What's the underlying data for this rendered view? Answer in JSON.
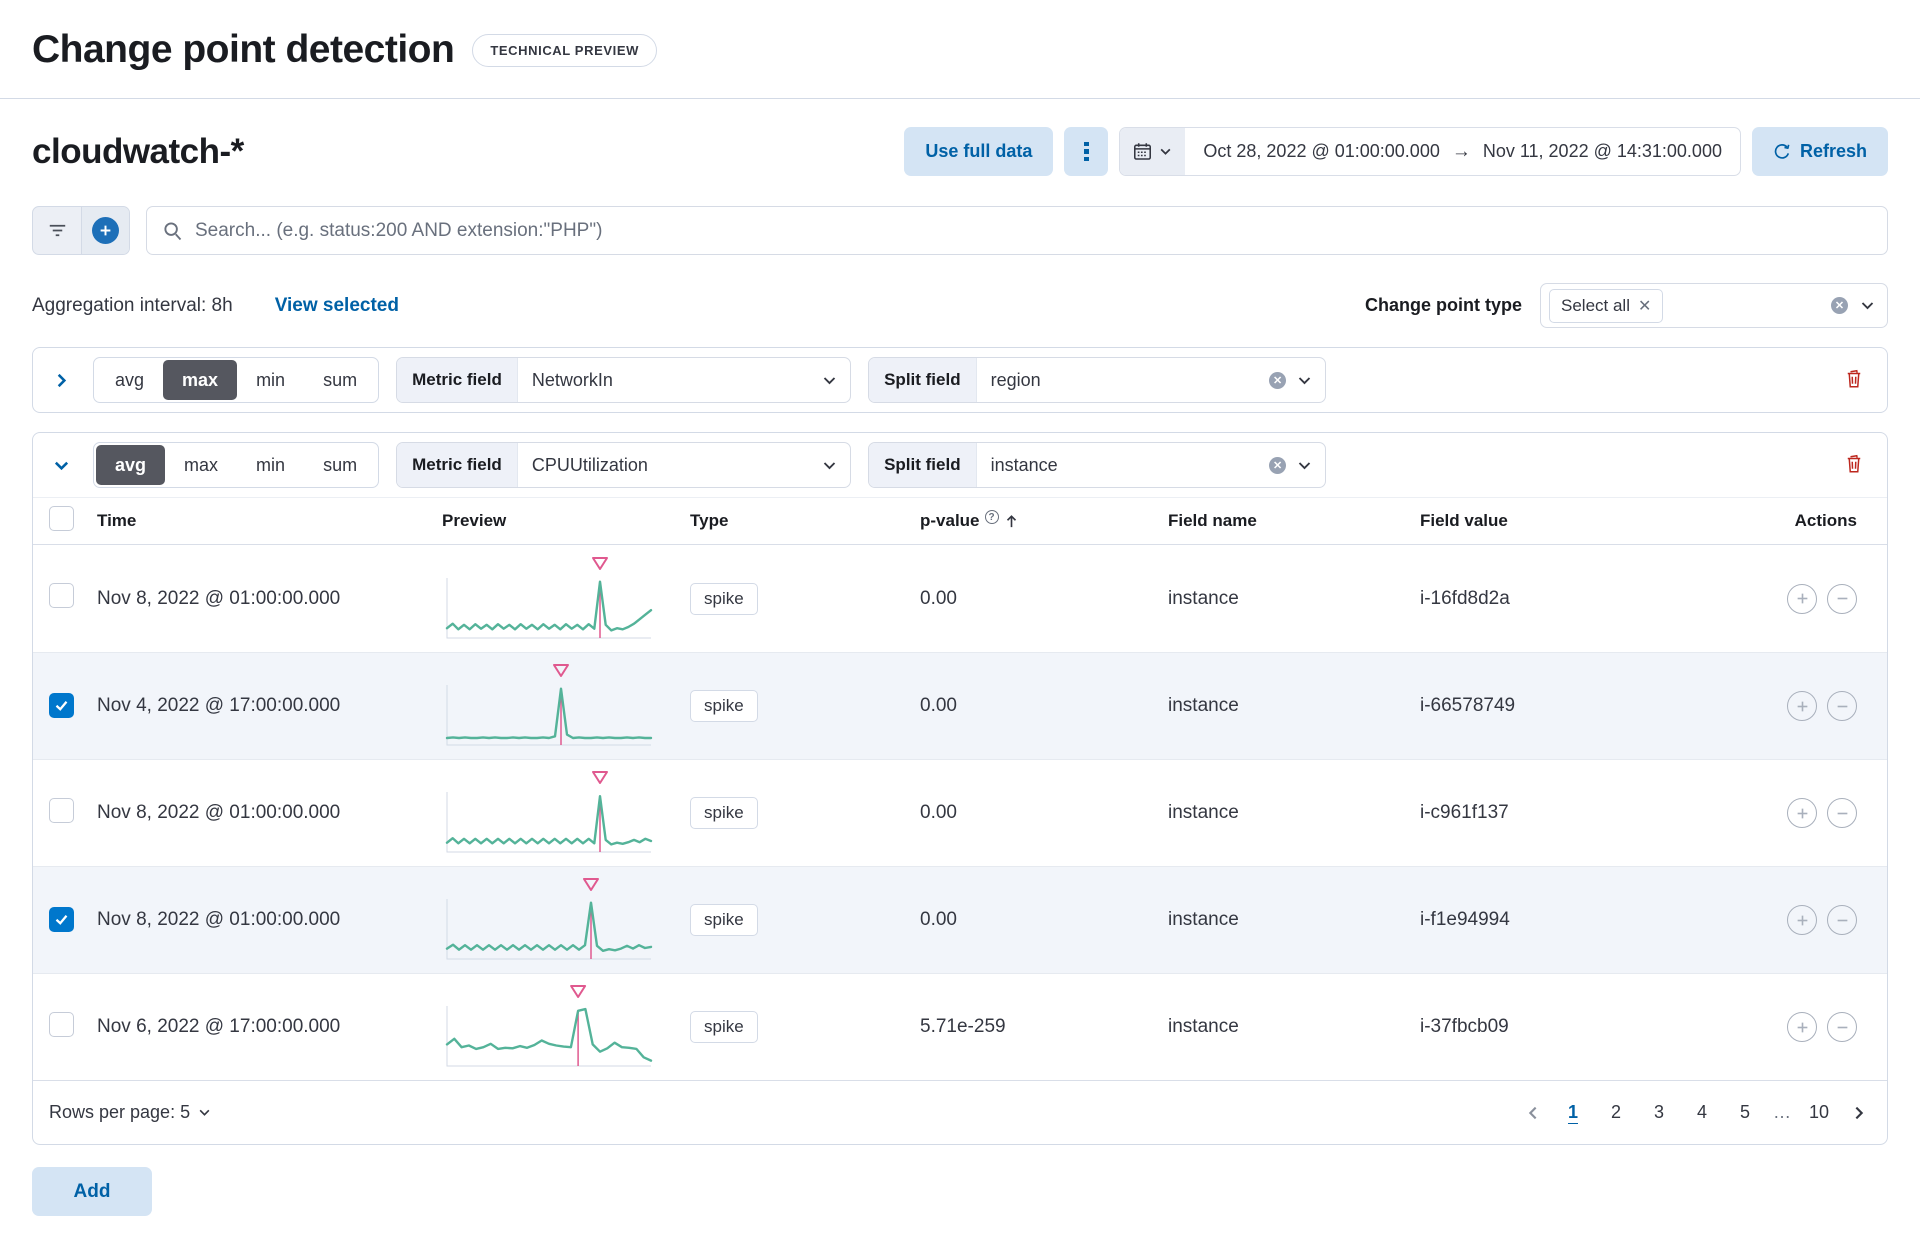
{
  "page": {
    "title": "Change point detection",
    "badge": "TECHNICAL PREVIEW"
  },
  "toolbar": {
    "index_title": "cloudwatch-*",
    "use_full_data": "Use full data",
    "date_start": "Oct 28, 2022 @ 01:00:00.000",
    "date_end": "Nov 11, 2022 @ 14:31:00.000",
    "refresh_label": "Refresh"
  },
  "search": {
    "placeholder": "Search... (e.g. status:200 AND extension:\"PHP\")"
  },
  "meta": {
    "aggregation_interval": "Aggregation interval: 8h",
    "view_selected": "View selected",
    "change_point_type_label": "Change point type",
    "change_point_type_value": "Select all"
  },
  "configs": [
    {
      "agg_options": [
        "avg",
        "max",
        "min",
        "sum"
      ],
      "selected_agg": "max",
      "metric_label": "Metric field",
      "metric_value": "NetworkIn",
      "split_label": "Split field",
      "split_value": "region",
      "collapsed": true
    },
    {
      "agg_options": [
        "avg",
        "max",
        "min",
        "sum"
      ],
      "selected_agg": "avg",
      "metric_label": "Metric field",
      "metric_value": "CPUUtilization",
      "split_label": "Split field",
      "split_value": "instance",
      "collapsed": false
    }
  ],
  "table": {
    "columns": [
      "Time",
      "Preview",
      "Type",
      "p-value",
      "Field name",
      "Field value",
      "Actions"
    ],
    "rows": [
      {
        "checked": false,
        "time": "Nov 8, 2022 @ 01:00:00.000",
        "type": "spike",
        "p_value": "0.00",
        "field_name": "instance",
        "field_value": "i-16fd8d2a",
        "preview": {
          "points": [
            0.14,
            0.22,
            0.12,
            0.2,
            0.12,
            0.21,
            0.13,
            0.2,
            0.12,
            0.21,
            0.13,
            0.2,
            0.12,
            0.21,
            0.13,
            0.2,
            0.12,
            0.21,
            0.13,
            0.2,
            0.12,
            0.21,
            0.13,
            0.2,
            0.12,
            0.21,
            0.13,
            0.97,
            0.2,
            0.1,
            0.14,
            0.12,
            0.16,
            0.22,
            0.3,
            0.38,
            0.46
          ],
          "spike_index": 27
        }
      },
      {
        "checked": true,
        "time": "Nov 4, 2022 @ 17:00:00.000",
        "type": "spike",
        "p_value": "0.00",
        "field_name": "instance",
        "field_value": "i-66578749",
        "preview": {
          "points": [
            0.09,
            0.1,
            0.09,
            0.1,
            0.09,
            0.09,
            0.1,
            0.09,
            0.1,
            0.09,
            0.09,
            0.1,
            0.09,
            0.1,
            0.09,
            0.09,
            0.1,
            0.09,
            0.12,
            0.97,
            0.15,
            0.09,
            0.1,
            0.09,
            0.09,
            0.1,
            0.09,
            0.1,
            0.09,
            0.09,
            0.1,
            0.09,
            0.1,
            0.09,
            0.09
          ],
          "spike_index": 19
        }
      },
      {
        "checked": false,
        "time": "Nov 8, 2022 @ 01:00:00.000",
        "type": "spike",
        "p_value": "0.00",
        "field_name": "instance",
        "field_value": "i-c961f137",
        "preview": {
          "points": [
            0.13,
            0.21,
            0.12,
            0.2,
            0.12,
            0.2,
            0.12,
            0.2,
            0.12,
            0.2,
            0.12,
            0.2,
            0.12,
            0.2,
            0.12,
            0.2,
            0.12,
            0.2,
            0.12,
            0.2,
            0.12,
            0.2,
            0.12,
            0.2,
            0.12,
            0.2,
            0.12,
            0.96,
            0.18,
            0.1,
            0.13,
            0.11,
            0.14,
            0.18,
            0.14,
            0.2,
            0.16
          ],
          "spike_index": 27
        }
      },
      {
        "checked": true,
        "time": "Nov 8, 2022 @ 01:00:00.000",
        "type": "spike",
        "p_value": "0.00",
        "field_name": "instance",
        "field_value": "i-f1e94994",
        "preview": {
          "points": [
            0.15,
            0.22,
            0.13,
            0.21,
            0.13,
            0.21,
            0.13,
            0.21,
            0.13,
            0.21,
            0.13,
            0.21,
            0.13,
            0.21,
            0.13,
            0.21,
            0.13,
            0.21,
            0.13,
            0.21,
            0.13,
            0.21,
            0.13,
            0.21,
            0.97,
            0.2,
            0.11,
            0.14,
            0.12,
            0.15,
            0.2,
            0.15,
            0.21,
            0.16,
            0.18
          ],
          "spike_index": 24
        }
      },
      {
        "checked": false,
        "time": "Nov 6, 2022 @ 17:00:00.000",
        "type": "spike",
        "p_value": "5.71e-259",
        "field_name": "instance",
        "field_value": "i-37fbcb09",
        "preview": {
          "points": [
            0.35,
            0.45,
            0.3,
            0.33,
            0.27,
            0.3,
            0.36,
            0.27,
            0.29,
            0.28,
            0.32,
            0.29,
            0.34,
            0.42,
            0.36,
            0.33,
            0.31,
            0.3,
            0.95,
            0.98,
            0.35,
            0.22,
            0.28,
            0.38,
            0.3,
            0.29,
            0.27,
            0.12,
            0.06
          ],
          "spike_index": 18
        }
      }
    ]
  },
  "pagination": {
    "rows_per_page": "Rows per page: 5",
    "pages": [
      "1",
      "2",
      "3",
      "4",
      "5",
      "…",
      "10"
    ],
    "active_page": "1"
  },
  "footer": {
    "add": "Add"
  },
  "colors": {
    "accent": "#0077cc",
    "link": "#0061a6",
    "success_line": "#54b399",
    "spike_marker": "#e0598f",
    "danger": "#bd271e",
    "stripe": "#f2f5fa",
    "border": "#d3dae6"
  }
}
